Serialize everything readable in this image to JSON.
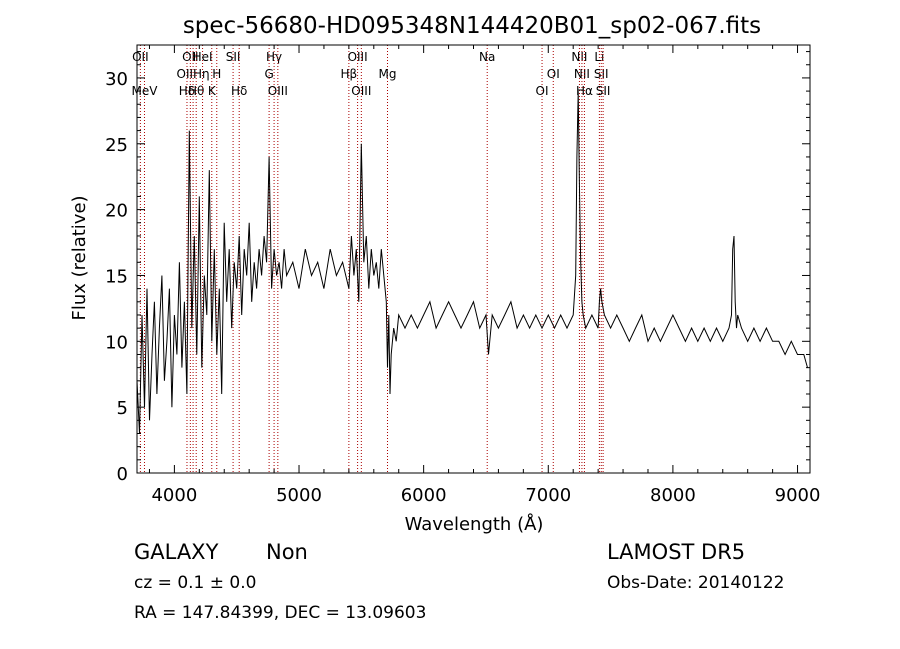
{
  "chart_data": {
    "type": "line",
    "title": "spec-56680-HD095348N144420B01_sp02-067.fits",
    "xlabel": "Wavelength (Å)",
    "ylabel": "Flux (relative)",
    "xlim": [
      3700,
      9100
    ],
    "ylim": [
      0,
      32.5
    ],
    "xticks": [
      4000,
      5000,
      6000,
      7000,
      8000,
      9000
    ],
    "xtick_labels": [
      "4000",
      "5000",
      "6000",
      "7000",
      "8000",
      "9000"
    ],
    "yticks": [
      0,
      5,
      10,
      15,
      20,
      25,
      30
    ],
    "ytick_labels": [
      "0",
      "5",
      "10",
      "15",
      "20",
      "25",
      "30"
    ],
    "grid": false,
    "line_color": "#000000",
    "marker_color": "#aa0000",
    "spectrum": {
      "x": [
        3700,
        3720,
        3740,
        3760,
        3780,
        3800,
        3820,
        3840,
        3860,
        3880,
        3900,
        3920,
        3940,
        3960,
        3980,
        4000,
        4020,
        4040,
        4060,
        4080,
        4100,
        4120,
        4140,
        4160,
        4180,
        4200,
        4220,
        4240,
        4260,
        4280,
        4300,
        4320,
        4340,
        4360,
        4380,
        4400,
        4420,
        4440,
        4460,
        4480,
        4500,
        4520,
        4540,
        4560,
        4580,
        4600,
        4620,
        4640,
        4660,
        4680,
        4700,
        4720,
        4740,
        4760,
        4780,
        4800,
        4820,
        4840,
        4860,
        4880,
        4900,
        4950,
        5000,
        5050,
        5100,
        5150,
        5200,
        5250,
        5300,
        5350,
        5400,
        5420,
        5440,
        5460,
        5480,
        5500,
        5520,
        5540,
        5560,
        5580,
        5600,
        5620,
        5640,
        5660,
        5680,
        5700,
        5710,
        5720,
        5730,
        5740,
        5760,
        5780,
        5800,
        5850,
        5900,
        5950,
        6000,
        6050,
        6100,
        6150,
        6200,
        6250,
        6300,
        6350,
        6400,
        6450,
        6500,
        6520,
        6550,
        6600,
        6650,
        6700,
        6750,
        6800,
        6850,
        6900,
        6950,
        7000,
        7050,
        7100,
        7150,
        7200,
        7220,
        7230,
        7240,
        7250,
        7260,
        7270,
        7280,
        7300,
        7350,
        7400,
        7410,
        7420,
        7430,
        7450,
        7500,
        7550,
        7600,
        7650,
        7700,
        7750,
        7800,
        7850,
        7900,
        7950,
        8000,
        8050,
        8100,
        8150,
        8200,
        8250,
        8300,
        8350,
        8400,
        8450,
        8470,
        8480,
        8490,
        8500,
        8510,
        8520,
        8550,
        8600,
        8650,
        8700,
        8750,
        8800,
        8850,
        8900,
        8950,
        9000,
        9050,
        9080
      ],
      "y": [
        7,
        3,
        12,
        5,
        14,
        4,
        9,
        13,
        6,
        11,
        15,
        7,
        10,
        14,
        5,
        12,
        9,
        16,
        8,
        13,
        6,
        26,
        11,
        18,
        9,
        21,
        8,
        15,
        12,
        23,
        10,
        17,
        9,
        14,
        6,
        19,
        13,
        17,
        11,
        16,
        14,
        18,
        12,
        17,
        15,
        19,
        13,
        16,
        14,
        17,
        15,
        18,
        16,
        24,
        14,
        17,
        15,
        16,
        14,
        17,
        15,
        16,
        14,
        17,
        15,
        16,
        14,
        17,
        15,
        16,
        14,
        18,
        15,
        17,
        13,
        25,
        16,
        18,
        14,
        17,
        15,
        16,
        14,
        17,
        15,
        13,
        8,
        12,
        6,
        9,
        11,
        10,
        12,
        11,
        12,
        11,
        12,
        13,
        11,
        12,
        13,
        12,
        11,
        12,
        13,
        11,
        12,
        9,
        12,
        11,
        12,
        13,
        11,
        12,
        11,
        12,
        11,
        12,
        11,
        12,
        11,
        12,
        15,
        24,
        29,
        22,
        16,
        13,
        12,
        11,
        12,
        11,
        13,
        14,
        13,
        12,
        11,
        12,
        11,
        10,
        11,
        12,
        10,
        11,
        10,
        11,
        12,
        11,
        10,
        11,
        10,
        11,
        10,
        11,
        10,
        11,
        12,
        17,
        18,
        13,
        11,
        12,
        11,
        10,
        11,
        10,
        11,
        10,
        10,
        9,
        10,
        9,
        9,
        8
      ]
    },
    "lines": [
      {
        "wavelength": 3727,
        "label": "OII",
        "row": 0
      },
      {
        "wavelength": 3760,
        "label": "MeV",
        "row": 2
      },
      {
        "wavelength": 4101,
        "label": "Hδ",
        "row": 3
      },
      {
        "wavelength": 4128,
        "label": "OII",
        "row": 0
      },
      {
        "wavelength": 4150,
        "label": "OIIHη",
        "row": 1
      },
      {
        "wavelength": 4175,
        "label": "Hθ",
        "row": 2
      },
      {
        "wavelength": 4226,
        "label": "HeI",
        "row": 0
      },
      {
        "wavelength": 4300,
        "label": "K",
        "row": 2
      },
      {
        "wavelength": 4340,
        "label": "H",
        "row": 1
      },
      {
        "wavelength": 4471,
        "label": "SII",
        "row": 0
      },
      {
        "wavelength": 4520,
        "label": "Hδ",
        "row": 2
      },
      {
        "wavelength": 4760,
        "label": "G",
        "row": 1
      },
      {
        "wavelength": 4800,
        "label": "Hγ",
        "row": 0
      },
      {
        "wavelength": 4830,
        "label": "OIII",
        "row": 2
      },
      {
        "wavelength": 5400,
        "label": "Hβ",
        "row": 1
      },
      {
        "wavelength": 5470,
        "label": "OIII",
        "row": 0
      },
      {
        "wavelength": 5500,
        "label": "OIII",
        "row": 2
      },
      {
        "wavelength": 5710,
        "label": "Mg",
        "row": 1
      },
      {
        "wavelength": 6510,
        "label": "Na",
        "row": 0
      },
      {
        "wavelength": 6950,
        "label": "OI",
        "row": 2
      },
      {
        "wavelength": 7040,
        "label": "OI",
        "row": 1
      },
      {
        "wavelength": 7250,
        "label": "NII",
        "row": 0
      },
      {
        "wavelength": 7270,
        "label": "NII",
        "row": 1
      },
      {
        "wavelength": 7290,
        "label": "Hα",
        "row": 2
      },
      {
        "wavelength": 7410,
        "label": "Li",
        "row": 0
      },
      {
        "wavelength": 7425,
        "label": "SII",
        "row": 1
      },
      {
        "wavelength": 7440,
        "label": "SII",
        "row": 2
      }
    ]
  },
  "info": {
    "class": "GALAXY",
    "subclass": "Non",
    "survey": "LAMOST DR5",
    "cz": "cz = 0.1 ± 0.0",
    "obs_date": "Obs-Date: 20140122",
    "coords": "RA = 147.84399, DEC =  13.09603"
  }
}
